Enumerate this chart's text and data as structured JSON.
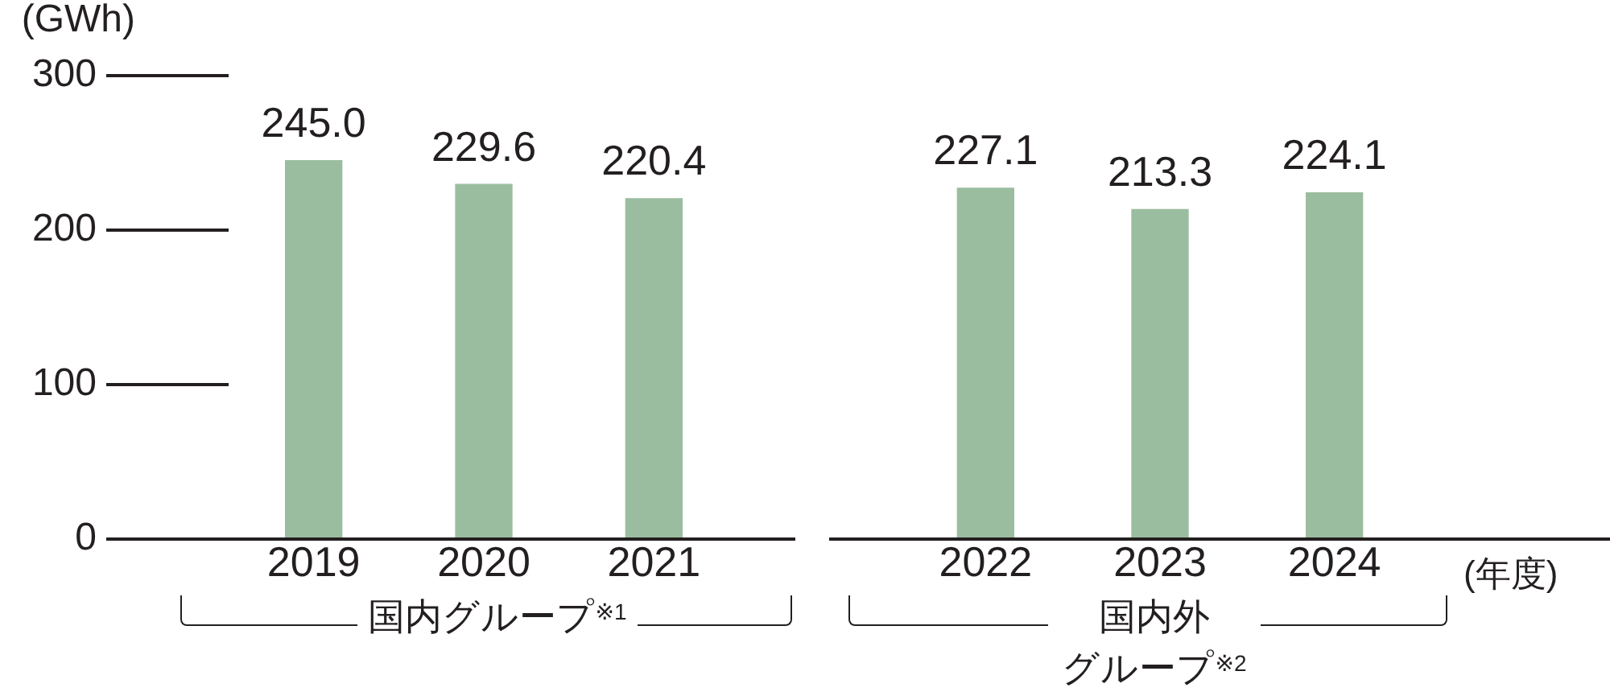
{
  "chart_data": [
    {
      "type": "bar",
      "ylabel": "(GWh)",
      "xlabel": "国内グループ$^{※1}$",
      "categories": [
        "2019",
        "2020",
        "2021"
      ],
      "values": [
        245.0,
        229.6,
        220.4
      ],
      "value_labels": [
        "245.0",
        "229.6",
        "220.4"
      ],
      "color": "#9bbd9f",
      "ylim": [
        0,
        300
      ],
      "yticks": [
        0,
        100,
        200,
        300
      ]
    },
    {
      "type": "bar",
      "xlabel": "国内外グループ$^{※2}$",
      "categories": [
        "2022",
        "2023",
        "2024"
      ],
      "values": [
        227.1,
        213.3,
        224.1
      ],
      "value_labels": [
        "227.1",
        "213.3",
        "224.1"
      ],
      "color": "#9bbd9f",
      "ylim": [
        0,
        300
      ],
      "tick_labels": "x",
      "annotations": [
        "(年度)"
      ]
    }
  ]
}
